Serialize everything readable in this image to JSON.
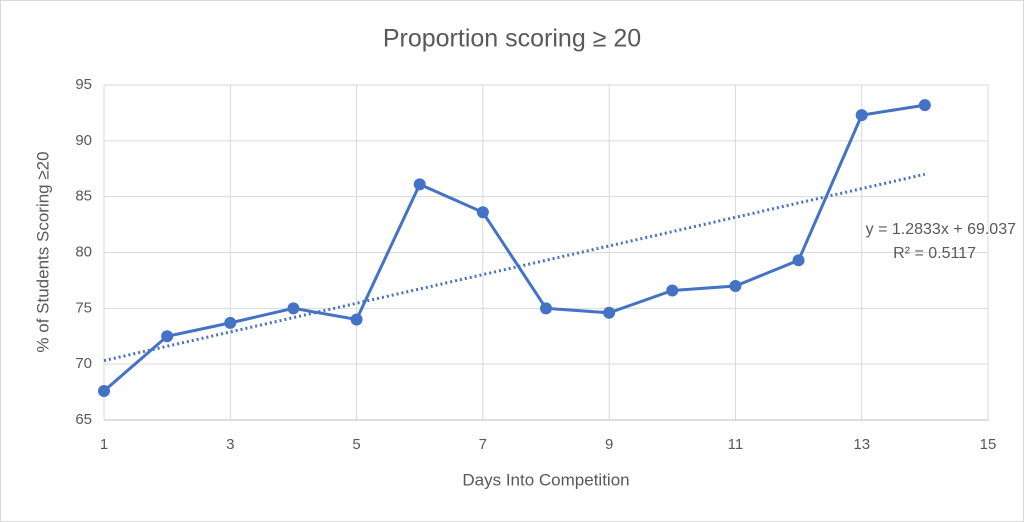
{
  "chart_data": {
    "type": "line",
    "title": "Proportion scoring ≥ 20",
    "x_label": "Days Into Competition",
    "y_label": "% of Students Scoring ≥20",
    "x": [
      1,
      2,
      3,
      4,
      5,
      6,
      7,
      8,
      9,
      10,
      11,
      12,
      13,
      14
    ],
    "series": [
      {
        "color": "#4472c4",
        "values": [
          67.6,
          72.5,
          73.7,
          75.0,
          74.0,
          86.1,
          83.6,
          75.0,
          74.6,
          76.6,
          77.0,
          79.3,
          92.3,
          93.2
        ]
      }
    ],
    "xlim": [
      1,
      15
    ],
    "xticks": [
      1,
      3,
      5,
      7,
      9,
      11,
      13,
      15
    ],
    "ylim": [
      65,
      95
    ],
    "yticks": [
      65,
      70,
      75,
      80,
      85,
      90,
      95
    ],
    "grid": true,
    "trendline": {
      "slope": 1.2833,
      "intercept": 69.037,
      "equation": "y = 1.2833x + 69.037",
      "r_squared": "R² = 0.5117"
    }
  }
}
